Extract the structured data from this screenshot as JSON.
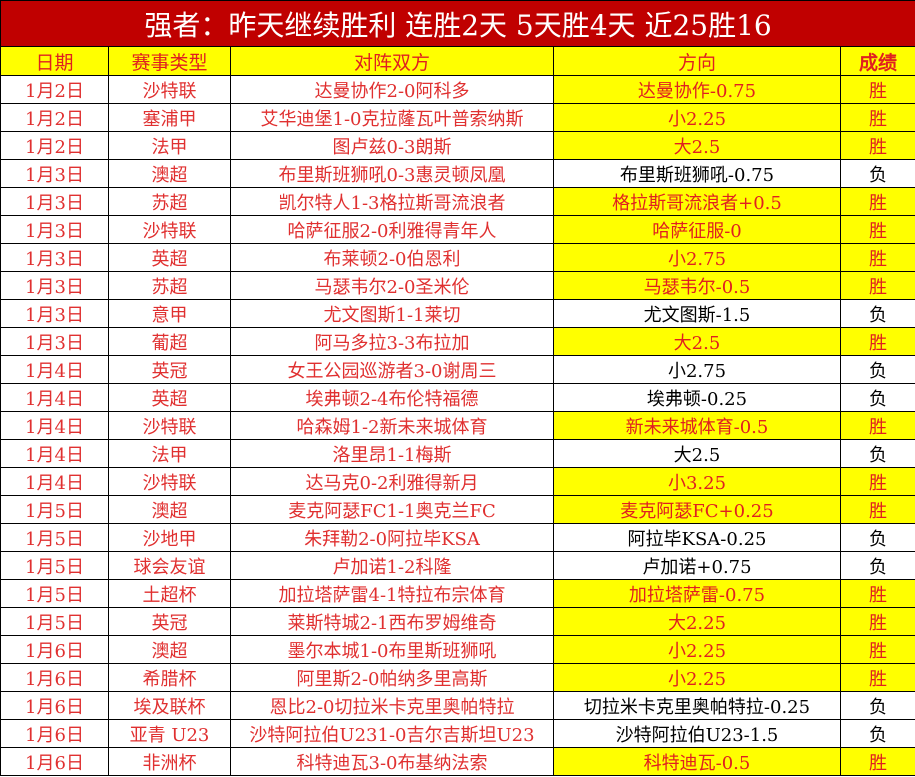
{
  "title": "强者：昨天继续胜利 连胜2天 5天胜4天 近25胜16",
  "headers": [
    "日期",
    "赛事类型",
    "对阵双方",
    "方向",
    "成绩"
  ],
  "colors": {
    "title_bg": "#c00000",
    "header_bg": "#ffff00",
    "win_bg": "#ffff00",
    "text_red": "#e02020"
  },
  "rows": [
    {
      "date": "1月2日",
      "league": "沙特联",
      "match": "达曼协作2-0阿科多",
      "pick": "达曼协作-0.75",
      "result": "胜"
    },
    {
      "date": "1月2日",
      "league": "塞浦甲",
      "match": "艾华迪堡1-0克拉蕯瓦叶普索纳斯",
      "pick": "小2.25",
      "result": "胜"
    },
    {
      "date": "1月2日",
      "league": "法甲",
      "match": "图卢兹0-3朗斯",
      "pick": "大2.5",
      "result": "胜"
    },
    {
      "date": "1月3日",
      "league": "澳超",
      "match": "布里斯班狮吼0-3惠灵顿凤凰",
      "pick": "布里斯班狮吼-0.75",
      "result": "负"
    },
    {
      "date": "1月3日",
      "league": "苏超",
      "match": "凯尔特人1-3格拉斯哥流浪者",
      "pick": "格拉斯哥流浪者+0.5",
      "result": "胜"
    },
    {
      "date": "1月3日",
      "league": "沙特联",
      "match": "哈萨征服2-0利雅得青年人",
      "pick": "哈萨征服-0",
      "result": "胜"
    },
    {
      "date": "1月3日",
      "league": "英超",
      "match": "布莱顿2-0伯恩利",
      "pick": "小2.75",
      "result": "胜"
    },
    {
      "date": "1月3日",
      "league": "苏超",
      "match": "马瑟韦尔2-0圣米伦",
      "pick": "马瑟韦尔-0.5",
      "result": "胜"
    },
    {
      "date": "1月3日",
      "league": "意甲",
      "match": "尤文图斯1-1莱切",
      "pick": "尤文图斯-1.5",
      "result": "负"
    },
    {
      "date": "1月3日",
      "league": "葡超",
      "match": "阿马多拉3-3布拉加",
      "pick": "大2.5",
      "result": "胜"
    },
    {
      "date": "1月4日",
      "league": "英冠",
      "match": "女王公园巡游者3-0谢周三",
      "pick": "小2.75",
      "result": "负"
    },
    {
      "date": "1月4日",
      "league": "英超",
      "match": "埃弗顿2-4布伦特福德",
      "pick": "埃弗顿-0.25",
      "result": "负"
    },
    {
      "date": "1月4日",
      "league": "沙特联",
      "match": "哈森姆1-2新未来城体育",
      "pick": "新未来城体育-0.5",
      "result": "胜"
    },
    {
      "date": "1月4日",
      "league": "法甲",
      "match": "洛里昂1-1梅斯",
      "pick": "大2.5",
      "result": "负"
    },
    {
      "date": "1月4日",
      "league": "沙特联",
      "match": "达马克0-2利雅得新月",
      "pick": "小3.25",
      "result": "胜"
    },
    {
      "date": "1月5日",
      "league": "澳超",
      "match": "麦克阿瑟FC1-1奥克兰FC",
      "pick": "麦克阿瑟FC+0.25",
      "result": "胜"
    },
    {
      "date": "1月5日",
      "league": "沙地甲",
      "match": "朱拜勒2-0阿拉毕KSA",
      "pick": "阿拉毕KSA-0.25",
      "result": "负"
    },
    {
      "date": "1月5日",
      "league": "球会友谊",
      "match": "卢加诺1-2科隆",
      "pick": "卢加诺+0.75",
      "result": "负"
    },
    {
      "date": "1月5日",
      "league": "土超杯",
      "match": "加拉塔萨雷4-1特拉布宗体育",
      "pick": "加拉塔萨雷-0.75",
      "result": "胜"
    },
    {
      "date": "1月5日",
      "league": "英冠",
      "match": "莱斯特城2-1西布罗姆维奇",
      "pick": "大2.25",
      "result": "胜"
    },
    {
      "date": "1月6日",
      "league": "澳超",
      "match": "墨尔本城1-0布里斯班狮吼",
      "pick": "小2.25",
      "result": "胜"
    },
    {
      "date": "1月6日",
      "league": "希腊杯",
      "match": "阿里斯2-0帕纳多里高斯",
      "pick": "小2.25",
      "result": "胜"
    },
    {
      "date": "1月6日",
      "league": "埃及联杯",
      "match": "恩比2-0切拉米卡克里奥帕特拉",
      "pick": "切拉米卡克里奥帕特拉-0.25",
      "result": "负"
    },
    {
      "date": "1月6日",
      "league": "亚青 U23",
      "match": "沙特阿拉伯U231-0吉尔吉斯坦U23",
      "pick": "沙特阿拉伯U23-1.5",
      "result": "负"
    },
    {
      "date": "1月6日",
      "league": "非洲杯",
      "match": "科特迪瓦3-0布基纳法索",
      "pick": "科特迪瓦-0.5",
      "result": "胜"
    }
  ]
}
